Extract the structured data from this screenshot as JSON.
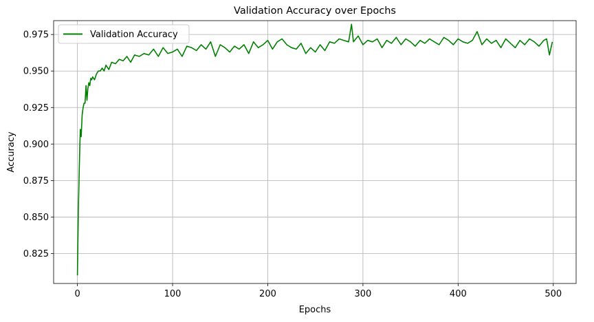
{
  "chart_data": {
    "type": "line",
    "title": "Validation Accuracy over Epochs",
    "xlabel": "Epochs",
    "ylabel": "Accuracy",
    "xlim": [
      -25,
      524
    ],
    "ylim": [
      0.8045,
      0.9845
    ],
    "xticks": [
      0,
      100,
      200,
      300,
      400,
      500
    ],
    "yticks": [
      0.825,
      0.85,
      0.875,
      0.9,
      0.925,
      0.95,
      0.975
    ],
    "ytick_labels": [
      "0.825",
      "0.850",
      "0.875",
      "0.900",
      "0.925",
      "0.950",
      "0.975"
    ],
    "grid": true,
    "legend_position": "top-left",
    "series": [
      {
        "name": "Validation Accuracy",
        "color": "#008000",
        "x": [
          0,
          1,
          2,
          3,
          4,
          5,
          6,
          7,
          8,
          9,
          10,
          11,
          12,
          13,
          14,
          15,
          16,
          18,
          20,
          22,
          24,
          26,
          28,
          30,
          33,
          36,
          40,
          44,
          48,
          52,
          56,
          60,
          65,
          70,
          75,
          80,
          85,
          90,
          95,
          100,
          105,
          110,
          115,
          120,
          125,
          130,
          135,
          140,
          145,
          150,
          155,
          160,
          165,
          170,
          175,
          180,
          185,
          190,
          195,
          200,
          205,
          210,
          215,
          220,
          225,
          230,
          235,
          240,
          245,
          250,
          255,
          260,
          265,
          270,
          275,
          280,
          285,
          288,
          290,
          295,
          300,
          305,
          310,
          315,
          320,
          325,
          330,
          335,
          340,
          345,
          350,
          355,
          360,
          365,
          370,
          375,
          380,
          385,
          390,
          395,
          400,
          405,
          410,
          415,
          420,
          425,
          430,
          435,
          440,
          445,
          450,
          455,
          460,
          465,
          470,
          475,
          480,
          485,
          490,
          493,
          496,
          499
        ],
        "values": [
          0.81,
          0.855,
          0.885,
          0.91,
          0.905,
          0.92,
          0.925,
          0.928,
          0.928,
          0.94,
          0.93,
          0.938,
          0.942,
          0.94,
          0.945,
          0.944,
          0.946,
          0.944,
          0.948,
          0.95,
          0.95,
          0.952,
          0.95,
          0.954,
          0.951,
          0.956,
          0.955,
          0.958,
          0.957,
          0.96,
          0.956,
          0.961,
          0.96,
          0.962,
          0.961,
          0.965,
          0.96,
          0.966,
          0.962,
          0.963,
          0.965,
          0.96,
          0.967,
          0.966,
          0.964,
          0.968,
          0.965,
          0.97,
          0.96,
          0.968,
          0.966,
          0.963,
          0.967,
          0.965,
          0.968,
          0.962,
          0.97,
          0.966,
          0.968,
          0.971,
          0.965,
          0.97,
          0.972,
          0.968,
          0.966,
          0.965,
          0.969,
          0.962,
          0.966,
          0.963,
          0.968,
          0.964,
          0.97,
          0.969,
          0.972,
          0.971,
          0.97,
          0.982,
          0.97,
          0.974,
          0.968,
          0.971,
          0.97,
          0.972,
          0.966,
          0.971,
          0.969,
          0.973,
          0.968,
          0.972,
          0.97,
          0.967,
          0.971,
          0.969,
          0.972,
          0.97,
          0.968,
          0.973,
          0.971,
          0.968,
          0.972,
          0.97,
          0.969,
          0.971,
          0.977,
          0.968,
          0.972,
          0.969,
          0.971,
          0.966,
          0.972,
          0.969,
          0.966,
          0.971,
          0.968,
          0.972,
          0.97,
          0.967,
          0.971,
          0.972,
          0.961,
          0.97
        ]
      }
    ]
  }
}
